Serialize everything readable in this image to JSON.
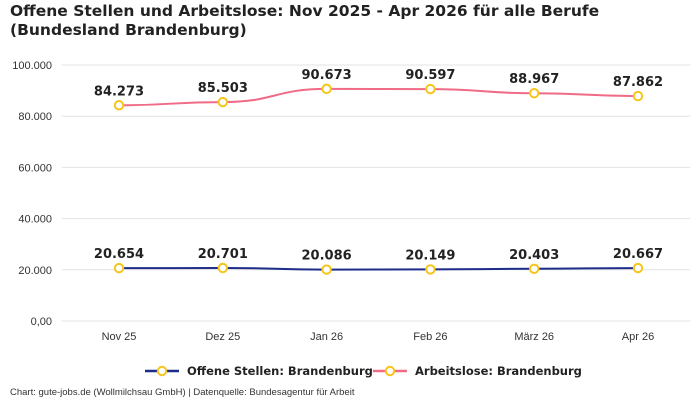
{
  "title": "Offene Stellen und Arbeitslose: Nov 2025 - Apr 2026 für alle Berufe (Bundesland Brandenburg)",
  "footer": "Chart: gute-jobs.de (Wollmilchsau GmbH) | Datenquelle: Bundesagentur für Arbeit",
  "colors": {
    "offene": "#1f2d8a",
    "arbeitslose": "#f06b85",
    "marker_fill": "#ffffff",
    "marker_stroke": "#f5c51b",
    "grid": "#e3e3e3"
  },
  "chart_data": {
    "type": "line",
    "categories": [
      "Nov 25",
      "Dez 25",
      "Jan 26",
      "Feb 26",
      "März 26",
      "Apr 26"
    ],
    "ylim": [
      0,
      100000
    ],
    "yticks": [
      0,
      20000,
      40000,
      60000,
      80000,
      100000
    ],
    "ytick_labels": [
      "0,00",
      "20.000",
      "40.000",
      "60.000",
      "80.000",
      "100.000"
    ],
    "grid": true,
    "legend_position": "bottom",
    "series": [
      {
        "name": "Offene Stellen: Brandenburg",
        "color_key": "offene",
        "values": [
          20654,
          20701,
          20086,
          20149,
          20403,
          20667
        ],
        "labels": [
          "20.654",
          "20.701",
          "20.086",
          "20.149",
          "20.403",
          "20.667"
        ]
      },
      {
        "name": "Arbeitslose: Brandenburg",
        "color_key": "arbeitslose",
        "values": [
          84273,
          85503,
          90673,
          90597,
          88967,
          87862
        ],
        "labels": [
          "84.273",
          "85.503",
          "90.673",
          "90.597",
          "88.967",
          "87.862"
        ]
      }
    ]
  }
}
